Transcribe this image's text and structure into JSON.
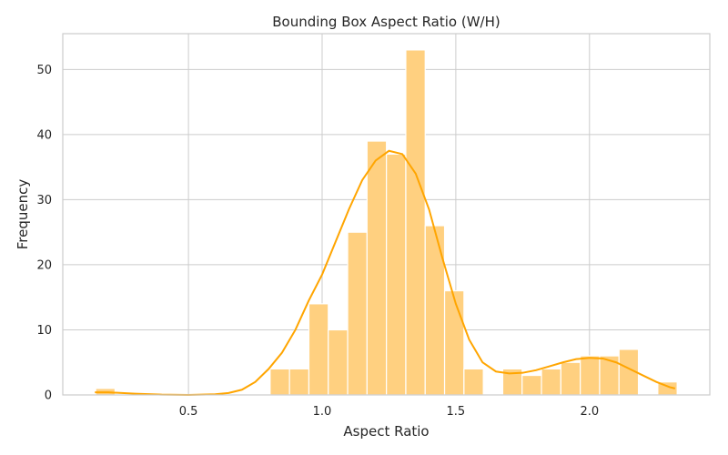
{
  "chart_data": {
    "type": "bar",
    "title": "Bounding Box Aspect Ratio (W/H)",
    "xlabel": "Aspect Ratio",
    "ylabel": "Frequency",
    "xlim": [
      0.03,
      2.45
    ],
    "ylim": [
      0,
      55.5
    ],
    "xticks": [
      "0.5",
      "1.0",
      "1.5",
      "2.0"
    ],
    "xtick_values": [
      0.5,
      1.0,
      1.5,
      2.0
    ],
    "yticks": [
      "0",
      "10",
      "20",
      "30",
      "40",
      "50"
    ],
    "ytick_values": [
      0,
      10,
      20,
      30,
      40,
      50
    ],
    "grid": true,
    "bar_color": "#ffd080",
    "bar_edge_color": "#ffffff",
    "kde_color": "#ffa500",
    "bin_start": 0.153,
    "bin_width": 0.0725,
    "values": [
      1,
      0,
      0,
      0,
      0,
      0,
      0,
      0,
      0,
      4,
      4,
      14,
      10,
      25,
      39,
      37,
      53,
      26,
      16,
      4,
      0,
      4,
      3,
      4,
      5,
      6,
      6,
      7,
      0,
      2
    ],
    "kde": {
      "name": "KDE",
      "x": [
        0.15,
        0.2,
        0.3,
        0.4,
        0.5,
        0.6,
        0.65,
        0.7,
        0.75,
        0.8,
        0.85,
        0.9,
        0.95,
        1.0,
        1.05,
        1.1,
        1.15,
        1.2,
        1.25,
        1.3,
        1.35,
        1.4,
        1.45,
        1.5,
        1.55,
        1.6,
        1.65,
        1.7,
        1.75,
        1.8,
        1.85,
        1.9,
        1.95,
        2.0,
        2.05,
        2.1,
        2.15,
        2.2,
        2.25,
        2.3,
        2.32
      ],
      "y": [
        0.4,
        0.4,
        0.2,
        0.05,
        0.0,
        0.1,
        0.3,
        0.8,
        2.0,
        4.0,
        6.5,
        10.0,
        14.5,
        18.5,
        23.5,
        28.5,
        33.0,
        36.0,
        37.5,
        37.0,
        34.0,
        28.5,
        21.0,
        14.0,
        8.5,
        5.0,
        3.6,
        3.3,
        3.4,
        3.8,
        4.4,
        5.0,
        5.5,
        5.7,
        5.6,
        5.0,
        4.0,
        3.0,
        2.0,
        1.2,
        1.0
      ]
    }
  }
}
